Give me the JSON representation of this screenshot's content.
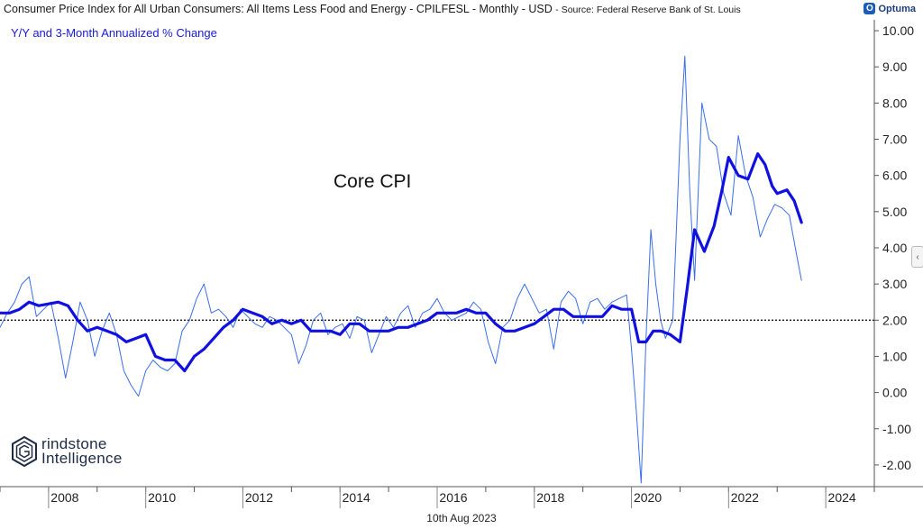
{
  "header": {
    "title": "Consumer Price Index for All Urban Consumers: All Items Less Food and Energy - CPILFESL - Monthly - USD",
    "source": "- Source: Federal Reserve Bank of St. Louis",
    "logo_text": "Optuma",
    "logo_icon": "optuma-logo-icon"
  },
  "subtitle": "Y/Y and 3-Month Annualized % Change",
  "annotation": "Core CPI",
  "date_label": "10th Aug 2023",
  "brand": {
    "line1": "rindstone",
    "line2": "Intelligence",
    "icon": "hexagon-g-logo-icon"
  },
  "collapse_icon": "chevron-left-icon",
  "colors": {
    "yoy_line": "#1010e0",
    "three_month_line": "#3a6ee8",
    "reference_line": "#000000",
    "subtitle": "#1a1ad6"
  },
  "chart_data": {
    "type": "line",
    "title": "Consumer Price Index for All Urban Consumers: All Items Less Food and Energy - CPILFESL - Monthly - USD",
    "subtitle": "Y/Y and 3-Month Annualized % Change",
    "xlabel": "",
    "ylabel": "",
    "xlim": [
      2007.0,
      2025.0
    ],
    "ylim": [
      -2.6,
      10.3
    ],
    "x_ticks": [
      2008,
      2010,
      2012,
      2014,
      2016,
      2018,
      2020,
      2022,
      2024
    ],
    "y_ticks": [
      10.0,
      9.0,
      8.0,
      7.0,
      6.0,
      5.0,
      4.0,
      3.0,
      2.0,
      1.0,
      0.0,
      -1.0,
      -2.0
    ],
    "y_tick_labels": [
      "10.00",
      "9.00",
      "8.00",
      "7.00",
      "6.00",
      "5.00",
      "4.00",
      "3.00",
      "2.00",
      "1.00",
      "0.00",
      "-1.00",
      "-2.00"
    ],
    "axis_position": "right",
    "grid": false,
    "reference_line": {
      "y": 2.0,
      "style": "dotted"
    },
    "series": [
      {
        "style": "thick",
        "x": [
          2007.0,
          2007.2,
          2007.4,
          2007.6,
          2007.8,
          2008.0,
          2008.2,
          2008.4,
          2008.6,
          2008.8,
          2009.0,
          2009.2,
          2009.4,
          2009.6,
          2009.8,
          2010.0,
          2010.2,
          2010.4,
          2010.6,
          2010.8,
          2011.0,
          2011.2,
          2011.4,
          2011.6,
          2011.8,
          2012.0,
          2012.2,
          2012.4,
          2012.6,
          2012.8,
          2013.0,
          2013.2,
          2013.4,
          2013.6,
          2013.8,
          2014.0,
          2014.2,
          2014.4,
          2014.6,
          2014.8,
          2015.0,
          2015.2,
          2015.4,
          2015.6,
          2015.8,
          2016.0,
          2016.2,
          2016.4,
          2016.6,
          2016.8,
          2017.0,
          2017.2,
          2017.4,
          2017.6,
          2017.8,
          2018.0,
          2018.2,
          2018.4,
          2018.6,
          2018.8,
          2019.0,
          2019.2,
          2019.4,
          2019.6,
          2019.8,
          2020.0,
          2020.15,
          2020.3,
          2020.45,
          2020.6,
          2020.8,
          2021.0,
          2021.15,
          2021.3,
          2021.5,
          2021.7,
          2021.85,
          2022.0,
          2022.2,
          2022.4,
          2022.6,
          2022.75,
          2022.9,
          2023.0,
          2023.2,
          2023.35,
          2023.5
        ],
        "values": [
          2.2,
          2.2,
          2.3,
          2.5,
          2.4,
          2.45,
          2.5,
          2.4,
          2.0,
          1.7,
          1.8,
          1.7,
          1.6,
          1.4,
          1.5,
          1.6,
          1.0,
          0.9,
          0.9,
          0.6,
          1.0,
          1.2,
          1.5,
          1.8,
          2.0,
          2.3,
          2.2,
          2.1,
          1.9,
          2.0,
          1.9,
          2.0,
          1.7,
          1.7,
          1.7,
          1.6,
          1.9,
          1.9,
          1.7,
          1.7,
          1.7,
          1.8,
          1.8,
          1.9,
          2.0,
          2.2,
          2.2,
          2.2,
          2.3,
          2.2,
          2.2,
          1.9,
          1.7,
          1.7,
          1.8,
          1.9,
          2.1,
          2.3,
          2.3,
          2.1,
          2.1,
          2.1,
          2.1,
          2.4,
          2.3,
          2.3,
          1.4,
          1.4,
          1.7,
          1.7,
          1.6,
          1.4,
          2.9,
          4.5,
          3.9,
          4.6,
          5.5,
          6.5,
          6.0,
          5.9,
          6.6,
          6.3,
          5.7,
          5.5,
          5.6,
          5.3,
          4.7
        ]
      },
      {
        "style": "thin",
        "x": [
          2007.0,
          2007.15,
          2007.3,
          2007.45,
          2007.6,
          2007.75,
          2007.9,
          2008.05,
          2008.2,
          2008.35,
          2008.5,
          2008.65,
          2008.8,
          2008.95,
          2009.1,
          2009.25,
          2009.4,
          2009.55,
          2009.7,
          2009.85,
          2010.0,
          2010.15,
          2010.3,
          2010.45,
          2010.6,
          2010.75,
          2010.9,
          2011.05,
          2011.2,
          2011.35,
          2011.5,
          2011.65,
          2011.8,
          2011.95,
          2012.1,
          2012.25,
          2012.4,
          2012.55,
          2012.7,
          2012.85,
          2013.0,
          2013.15,
          2013.3,
          2013.45,
          2013.6,
          2013.75,
          2013.9,
          2014.05,
          2014.2,
          2014.35,
          2014.5,
          2014.65,
          2014.8,
          2014.95,
          2015.1,
          2015.25,
          2015.4,
          2015.55,
          2015.7,
          2015.85,
          2016.0,
          2016.15,
          2016.3,
          2016.45,
          2016.6,
          2016.75,
          2016.9,
          2017.05,
          2017.2,
          2017.35,
          2017.5,
          2017.65,
          2017.8,
          2017.95,
          2018.1,
          2018.25,
          2018.4,
          2018.55,
          2018.7,
          2018.85,
          2019.0,
          2019.15,
          2019.3,
          2019.45,
          2019.6,
          2019.75,
          2019.9,
          2020.0,
          2020.1,
          2020.2,
          2020.3,
          2020.4,
          2020.5,
          2020.6,
          2020.7,
          2020.85,
          2021.0,
          2021.1,
          2021.2,
          2021.3,
          2021.45,
          2021.6,
          2021.75,
          2021.9,
          2022.05,
          2022.2,
          2022.35,
          2022.5,
          2022.65,
          2022.8,
          2022.95,
          2023.1,
          2023.25,
          2023.4,
          2023.5
        ],
        "values": [
          1.8,
          2.2,
          2.5,
          3.0,
          3.2,
          2.1,
          2.3,
          2.5,
          1.5,
          0.4,
          1.4,
          2.5,
          2.0,
          1.0,
          1.7,
          2.2,
          1.6,
          0.6,
          0.2,
          -0.1,
          0.6,
          0.9,
          0.7,
          0.6,
          0.8,
          1.7,
          2.0,
          2.6,
          3.0,
          2.2,
          2.3,
          2.1,
          1.8,
          2.3,
          2.1,
          1.9,
          1.8,
          2.1,
          2.0,
          1.8,
          1.6,
          0.8,
          1.3,
          2.0,
          2.2,
          1.6,
          1.8,
          1.9,
          1.5,
          2.1,
          2.0,
          1.1,
          1.6,
          2.1,
          1.8,
          2.2,
          2.4,
          1.8,
          2.2,
          2.3,
          2.6,
          2.2,
          2.0,
          2.1,
          2.2,
          2.5,
          2.3,
          1.4,
          0.8,
          1.8,
          2.0,
          2.6,
          3.0,
          2.6,
          2.2,
          2.3,
          1.2,
          2.5,
          2.8,
          2.6,
          1.9,
          2.5,
          2.6,
          2.3,
          2.5,
          2.6,
          2.7,
          1.2,
          -0.5,
          -2.5,
          1.5,
          4.5,
          3.0,
          2.0,
          1.5,
          2.0,
          7.0,
          9.3,
          5.6,
          3.1,
          8.0,
          7.0,
          6.8,
          5.5,
          4.9,
          7.1,
          6.0,
          5.4,
          4.3,
          4.8,
          5.2,
          5.1,
          4.9,
          3.8,
          3.1
        ]
      }
    ]
  }
}
